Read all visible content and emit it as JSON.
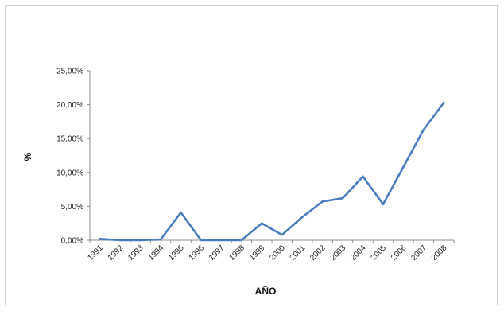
{
  "chart_data": {
    "type": "line",
    "title": "",
    "xlabel": "AÑO",
    "ylabel": "%",
    "x": [
      "1991",
      "1992",
      "1993",
      "1994",
      "1995",
      "1996",
      "1997",
      "1998",
      "1999",
      "2000",
      "2001",
      "2002",
      "2003",
      "2004",
      "2005",
      "2006",
      "2007",
      "2008"
    ],
    "series": [
      {
        "values": [
          0.2,
          0.0,
          0.0,
          0.1,
          4.1,
          0.0,
          0.0,
          0.0,
          2.5,
          0.8,
          3.4,
          5.7,
          6.2,
          9.4,
          5.3,
          10.8,
          16.3,
          20.3
        ]
      }
    ],
    "ylim": [
      0,
      25
    ],
    "yticks": [
      0,
      5,
      10,
      15,
      20,
      25
    ],
    "ytick_labels": [
      "0,00%",
      "5,00%",
      "10,00%",
      "15,00%",
      "20,00%",
      "25,00%"
    ],
    "grid": false,
    "legend": "none",
    "line_color": "#4a7cc0"
  }
}
